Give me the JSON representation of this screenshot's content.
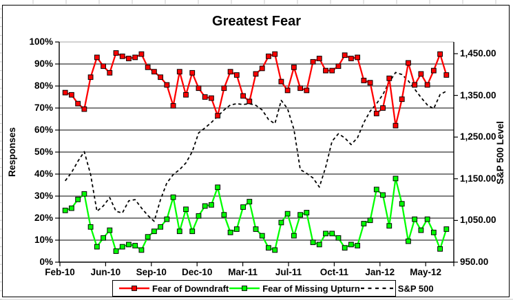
{
  "chart_data": {
    "type": "line",
    "title": "Greatest Fear",
    "grid": true,
    "legend_position": "bottom",
    "left_axis": {
      "title": "Responses",
      "min": 0,
      "max": 100,
      "tick_labels": [
        "100%",
        "90%",
        "80%",
        "70%",
        "60%",
        "50%",
        "40%",
        "30%",
        "20%",
        "10%",
        "0%"
      ],
      "tick_values": [
        100,
        90,
        80,
        70,
        60,
        50,
        40,
        30,
        20,
        10,
        0
      ]
    },
    "right_axis": {
      "title": "S&P 500 Level",
      "min": 950,
      "max": 1478,
      "tick_labels": [
        "1,450.00",
        "1,350.00",
        "1,250.00",
        "1,150.00",
        "1,050.00",
        "950.00"
      ],
      "tick_values": [
        1450,
        1350,
        1250,
        1150,
        1050,
        950
      ]
    },
    "x_axis": {
      "tick_labels": [
        "Feb-10",
        "Jun-10",
        "Sep-10",
        "Dec-10",
        "Mar-11",
        "Jul-11",
        "Oct-11",
        "Jan-12",
        "May-12"
      ]
    },
    "series": [
      {
        "name": "Fear of Downdraft",
        "axis": "left",
        "color": "#FF0000",
        "style": "solid",
        "marker": "square",
        "values": [
          77,
          76,
          72,
          69.5,
          84,
          93,
          89,
          86,
          95,
          93.5,
          92.5,
          93,
          94.5,
          88.5,
          86.5,
          84,
          80.5,
          71,
          86.5,
          76,
          86,
          79,
          75,
          74.5,
          66.5,
          79,
          86.5,
          85,
          75.5,
          73,
          85.5,
          88,
          93.5,
          94.5,
          82,
          78,
          88.5,
          79,
          78,
          91,
          92.5,
          87,
          87,
          89,
          94,
          92.5,
          93,
          82.5,
          81.5,
          67.5,
          70,
          83.5,
          62,
          74,
          90.5,
          80.5,
          85.5,
          80.5,
          87,
          94.5,
          85
        ]
      },
      {
        "name": "Fear of Missing Upturn",
        "axis": "left",
        "color": "#00FF00",
        "style": "solid",
        "marker": "square",
        "values": [
          23.5,
          24.5,
          28.5,
          31,
          16,
          7,
          11,
          14.5,
          5,
          7,
          8,
          7.5,
          5.5,
          11.5,
          14,
          16,
          19.5,
          29.5,
          14,
          24,
          14,
          21,
          25.5,
          26,
          34,
          21.5,
          13.5,
          15,
          25,
          27.5,
          15,
          12,
          6.5,
          5.5,
          18,
          22,
          12,
          21.5,
          22.5,
          9,
          8,
          13,
          13,
          11,
          6.5,
          8,
          7.5,
          17.5,
          19,
          33,
          30.5,
          16.5,
          38,
          26.5,
          9.5,
          19.5,
          14.5,
          19.5,
          13.5,
          6,
          15
        ]
      },
      {
        "name": "S&P 500",
        "axis": "right",
        "color": "#000000",
        "style": "dashed",
        "marker": "none",
        "values": [
          1145,
          1165,
          1192,
          1215,
          1160,
          1072,
          1085,
          1105,
          1072,
          1068,
          1097,
          1100,
          1080,
          1062,
          1048,
          1100,
          1140,
          1160,
          1172,
          1188,
          1215,
          1260,
          1272,
          1285,
          1300,
          1315,
          1327,
          1330,
          1328,
          1330,
          1326,
          1315,
          1292,
          1282,
          1338,
          1318,
          1268,
          1172,
          1163,
          1152,
          1130,
          1178,
          1240,
          1258,
          1248,
          1232,
          1248,
          1285,
          1312,
          1330,
          1352,
          1382,
          1405,
          1400,
          1385,
          1365,
          1345,
          1327,
          1318,
          1352,
          1360
        ]
      }
    ]
  }
}
